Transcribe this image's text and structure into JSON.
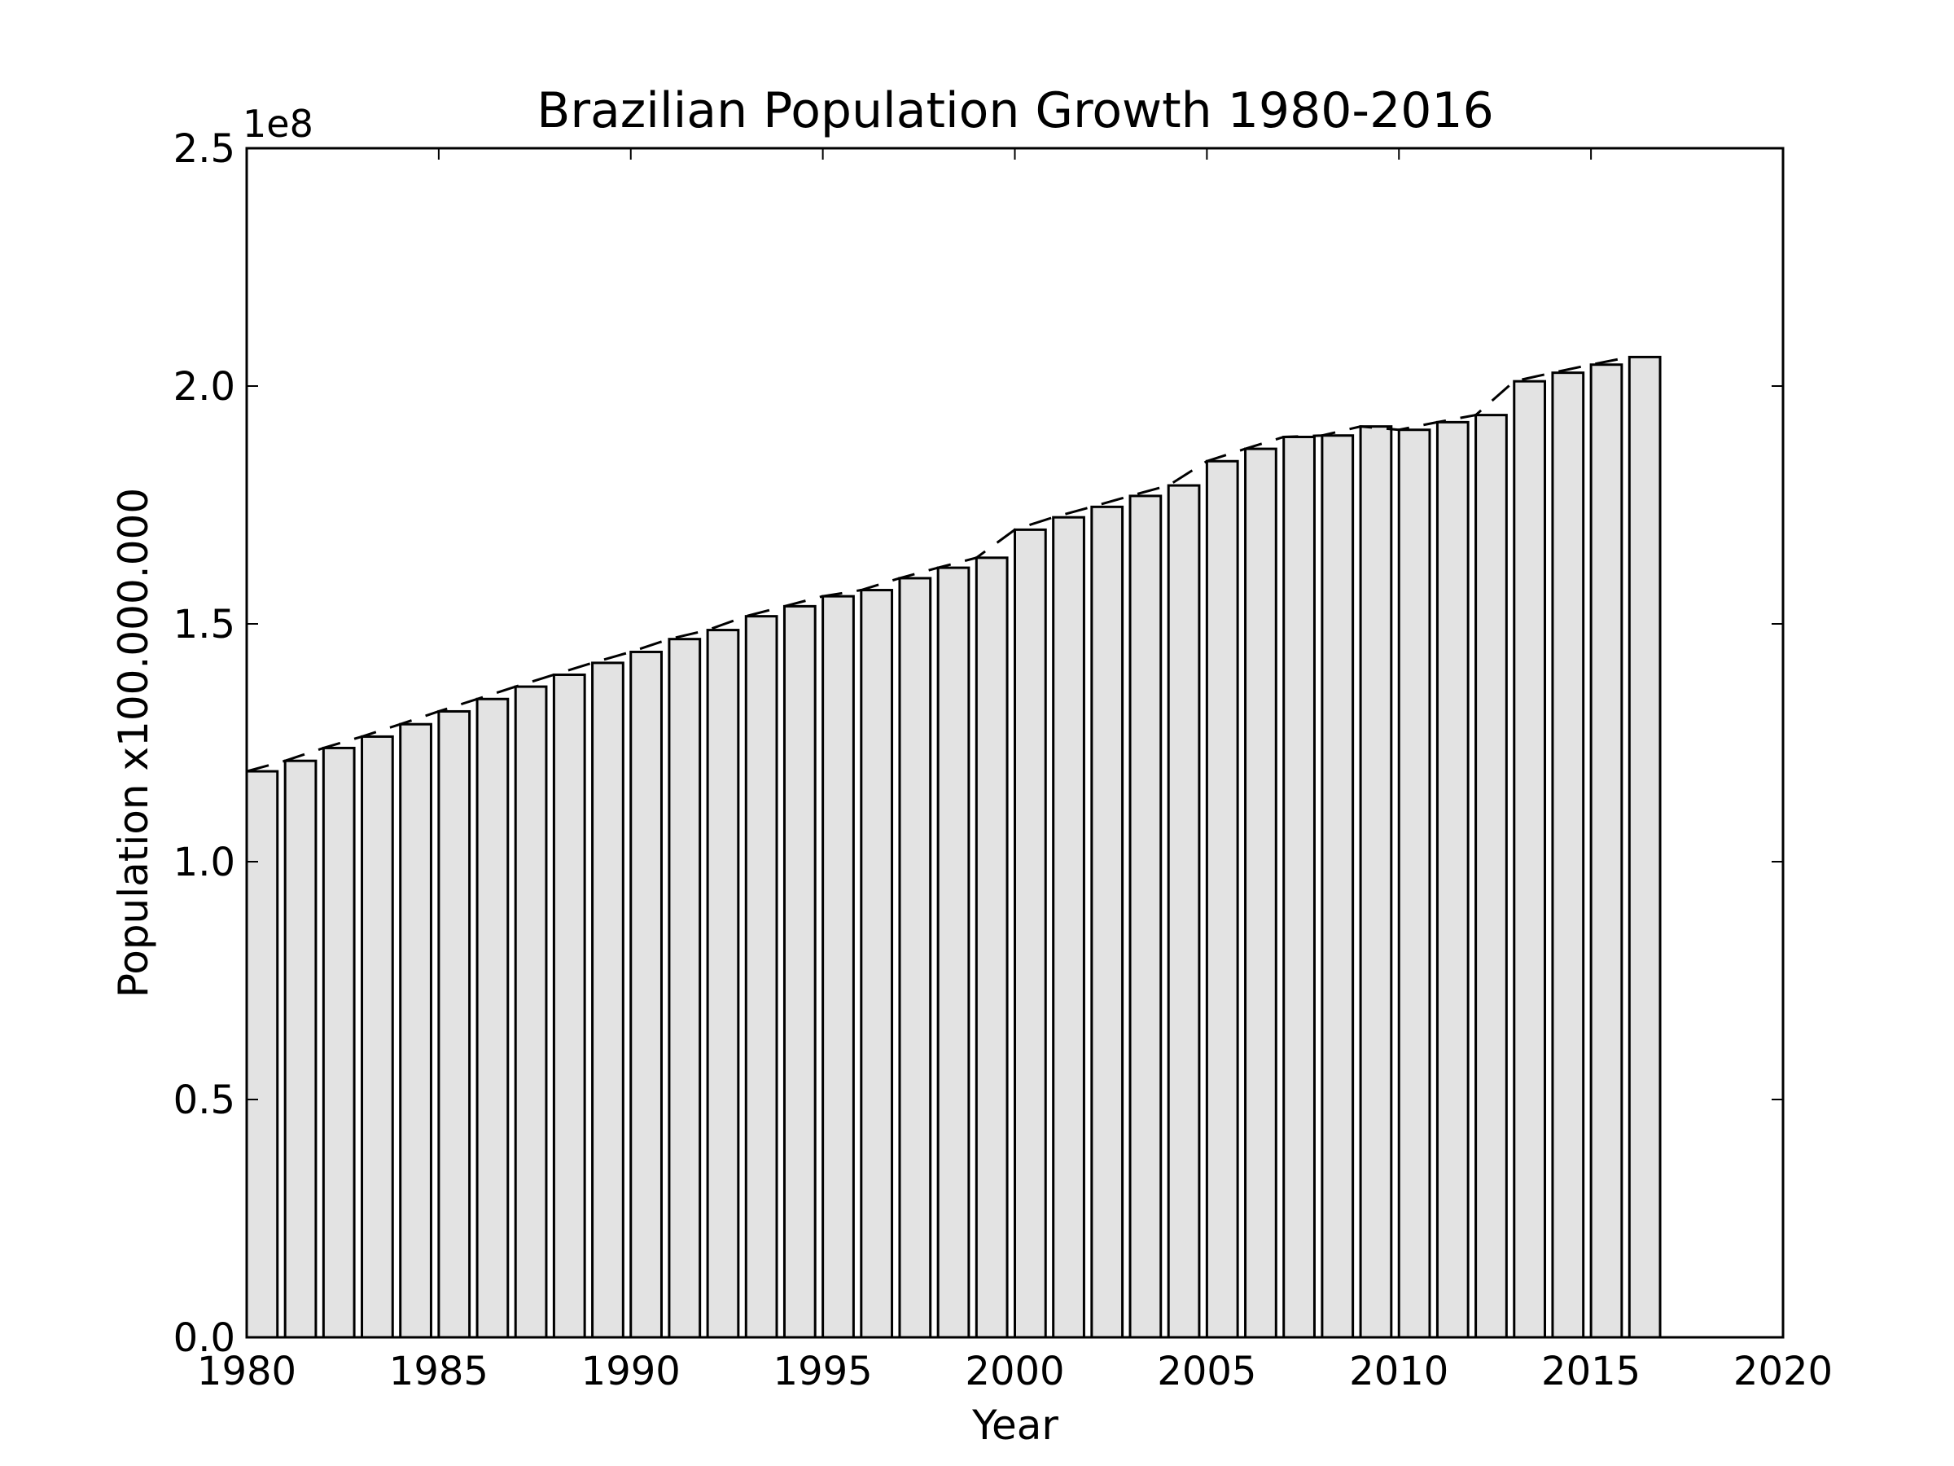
{
  "chart_data": {
    "type": "bar",
    "title": "Brazilian Population Growth 1980-2016",
    "xlabel": "Year",
    "ylabel": "Population x100.000.000",
    "y_offset_label": "1e8",
    "xlim": [
      1980,
      2020
    ],
    "ylim": [
      0,
      250000000
    ],
    "x_ticks": [
      1980,
      1985,
      1990,
      1995,
      2000,
      2005,
      2010,
      2015,
      2020
    ],
    "y_ticks": [
      0,
      50000000,
      100000000,
      150000000,
      200000000,
      250000000
    ],
    "y_tick_labels": [
      "0.0",
      "0.5",
      "1.0",
      "1.5",
      "2.0",
      "2.5"
    ],
    "grid": false,
    "bar_color": "#e3e3e3",
    "edge_color": "#000000",
    "x": [
      1980,
      1981,
      1982,
      1983,
      1984,
      1985,
      1986,
      1987,
      1988,
      1989,
      1990,
      1991,
      1992,
      1993,
      1994,
      1995,
      1996,
      1997,
      1998,
      1999,
      2000,
      2001,
      2002,
      2003,
      2004,
      2005,
      2006,
      2007,
      2008,
      2009,
      2010,
      2011,
      2012,
      2013,
      2014,
      2015,
      2016
    ],
    "values": [
      119000000,
      121200000,
      123900000,
      126300000,
      128900000,
      131600000,
      134200000,
      136800000,
      139300000,
      141800000,
      144100000,
      146800000,
      148700000,
      151600000,
      153700000,
      155800000,
      157100000,
      159600000,
      161800000,
      163900000,
      169800000,
      172400000,
      174600000,
      176900000,
      179100000,
      184200000,
      186800000,
      189300000,
      189600000,
      191500000,
      190800000,
      192400000,
      193900000,
      201000000,
      202800000,
      204500000,
      206100000
    ]
  }
}
